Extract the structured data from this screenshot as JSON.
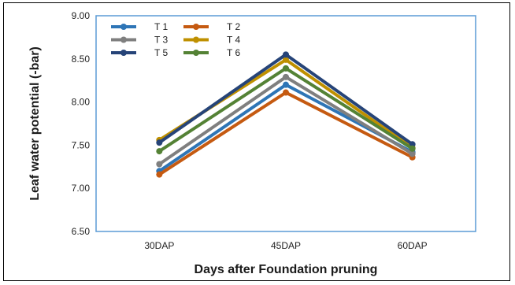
{
  "chart_data": {
    "type": "line",
    "title": "",
    "xlabel": "Days after Foundation pruning",
    "ylabel": "Leaf water potential (-bar)",
    "categories": [
      "30DAP",
      "45DAP",
      "60DAP"
    ],
    "ylim": [
      6.5,
      9.0
    ],
    "yticks": [
      "6.50",
      "7.00",
      "7.50",
      "8.00",
      "8.50",
      "9.00"
    ],
    "ytick_values": [
      6.5,
      7.0,
      7.5,
      8.0,
      8.5,
      9.0
    ],
    "grid": false,
    "legend_position": "top-left",
    "plot_border_color": "#5b9bd5",
    "series": [
      {
        "name": "T 1",
        "color": "#2e75b6",
        "values": [
          7.2,
          8.2,
          7.42
        ]
      },
      {
        "name": "T 2",
        "color": "#c55a11",
        "values": [
          7.16,
          8.11,
          7.36
        ]
      },
      {
        "name": "T 3",
        "color": "#7f7f7f",
        "values": [
          7.28,
          8.29,
          7.4
        ]
      },
      {
        "name": "T 4",
        "color": "#bf9000",
        "values": [
          7.56,
          8.49,
          7.47
        ]
      },
      {
        "name": "T 5",
        "color": "#264478",
        "values": [
          7.53,
          8.55,
          7.51
        ]
      },
      {
        "name": "T 6",
        "color": "#548235",
        "values": [
          7.43,
          8.39,
          7.46
        ]
      }
    ]
  }
}
